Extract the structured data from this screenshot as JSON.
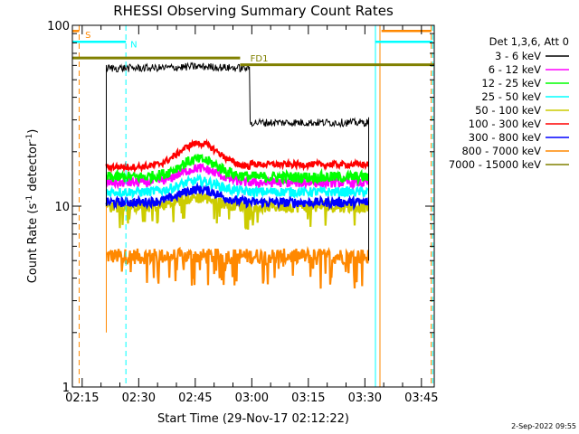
{
  "chart_data": {
    "type": "line",
    "title": "RHESSI Observing Summary Count Rates",
    "xlabel": "Start Time (29-Nov-17 02:12:22)",
    "ylabel_main": "Count Rate (s",
    "ylabel_sup1": "-1",
    "ylabel_mid": " detector",
    "ylabel_sup2": "-1",
    "ylabel_end": ")",
    "y_scale": "log",
    "ylim": [
      1,
      100
    ],
    "y_ticks": [
      {
        "value": 1,
        "label": "1"
      },
      {
        "value": 10,
        "label": "10"
      },
      {
        "value": 100,
        "label": "100"
      }
    ],
    "xlim_minutes": [
      0,
      96
    ],
    "x_ticks": [
      {
        "t": 2.6,
        "label": "02:15"
      },
      {
        "t": 17.6,
        "label": "02:30"
      },
      {
        "t": 32.6,
        "label": "02:45"
      },
      {
        "t": 47.6,
        "label": "03:00"
      },
      {
        "t": 62.6,
        "label": "03:15"
      },
      {
        "t": 77.6,
        "label": "03:30"
      },
      {
        "t": 92.6,
        "label": "03:45"
      }
    ],
    "legend_header": "Det 1,3,6, Att 0",
    "legend_position": "right",
    "series": [
      {
        "name": "3 - 6 keV",
        "color": "#000000",
        "base": 58,
        "late": 29,
        "bump": 0.02,
        "noise": 0.05
      },
      {
        "name": "6 - 12 keV",
        "color": "#ff00ff",
        "base": 13.5,
        "late": 13.5,
        "bump": 0.2,
        "noise": 0.06
      },
      {
        "name": "12 - 25 keV",
        "color": "#00ff00",
        "base": 14.5,
        "late": 14.5,
        "bump": 0.25,
        "noise": 0.07
      },
      {
        "name": "25 - 50 keV",
        "color": "#00ffff",
        "base": 12,
        "late": 12,
        "bump": 0.15,
        "noise": 0.06
      },
      {
        "name": "50 - 100 keV",
        "color": "#cccc00",
        "base": 10,
        "late": 10,
        "bump": 0.12,
        "noise": 0.08
      },
      {
        "name": "100 - 300 keV",
        "color": "#ff0000",
        "base": 16.5,
        "late": 17,
        "bump": 0.35,
        "noise": 0.04
      },
      {
        "name": "300 - 800 keV",
        "color": "#0000ff",
        "base": 10.5,
        "late": 10.5,
        "bump": 0.18,
        "noise": 0.06
      },
      {
        "name": "800 - 7000 keV",
        "color": "#ff8800",
        "base": 5.3,
        "late": 5.3,
        "bump": 0.0,
        "noise": 0.1
      },
      {
        "name": "7000 - 15000 keV",
        "color": "#808000",
        "base": 0,
        "late": 0,
        "bump": 0.0,
        "noise": 0.0
      }
    ],
    "data_window": [
      9.0,
      78.6
    ],
    "flare_peak_t": 33.5,
    "step_down_t": 47.0,
    "markers": [
      {
        "label": "S",
        "color": "#ff8800"
      },
      {
        "label": "N",
        "color": "#00ffff"
      },
      {
        "label": "FD1",
        "color": "#808000"
      }
    ],
    "footer_date": "2-Sep-2022 09:55"
  }
}
